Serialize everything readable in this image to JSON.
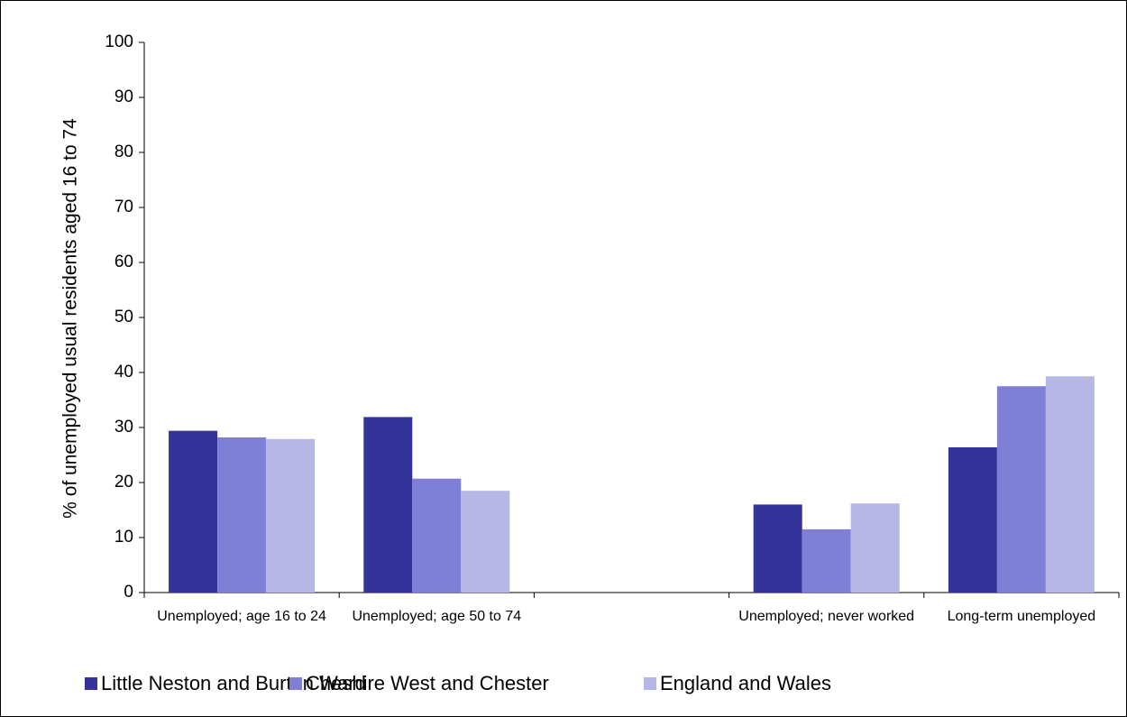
{
  "chart_data": {
    "type": "bar",
    "y_label": "% of unemployed usual residents aged 16 to 74",
    "categories": [
      "Unemployed; age 16 to 24",
      "Unemployed; age 50 to 74",
      null,
      "Unemployed; never worked",
      "Long-term unemployed"
    ],
    "series": [
      {
        "name": "Little Neston and Burton Ward",
        "color": "#333399",
        "values": [
          29.4,
          31.9,
          null,
          16.0,
          26.4
        ]
      },
      {
        "name": "Cheshire West and Chester",
        "color": "#7f7fd5",
        "values": [
          28.2,
          20.7,
          null,
          11.5,
          37.5
        ]
      },
      {
        "name": "England and Wales",
        "color": "#b7b7e6",
        "values": [
          27.9,
          18.5,
          null,
          16.2,
          39.3
        ]
      }
    ],
    "ylim": [
      0,
      100
    ],
    "yticks": [
      0,
      10,
      20,
      30,
      40,
      50,
      60,
      70,
      80,
      90,
      100
    ],
    "grid": false,
    "legend": "bottom"
  }
}
